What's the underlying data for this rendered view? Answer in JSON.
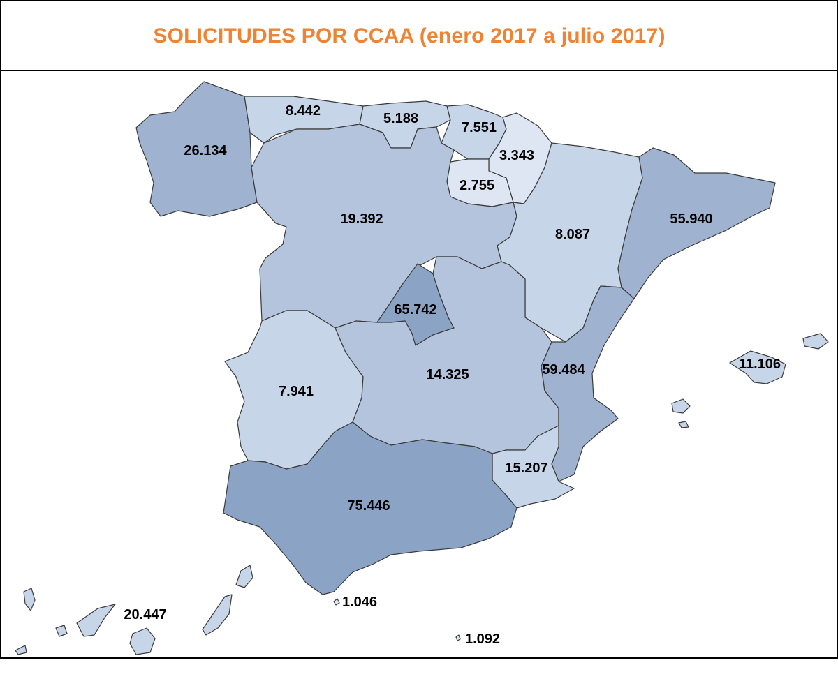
{
  "title": "SOLICITUDES POR CCAA (enero 2017 a julio 2017)",
  "colors": {
    "title": "#ee8433",
    "shade_darkest": "#8ba3c5",
    "shade_dark": "#9fb3d0",
    "shade_mid": "#b4c4dc",
    "shade_light": "#c7d5e8",
    "shade_lightest": "#dde6f2"
  },
  "regions": [
    {
      "key": "galicia",
      "value": "26.134"
    },
    {
      "key": "asturias",
      "value": "8.442"
    },
    {
      "key": "cantabria",
      "value": "5.188"
    },
    {
      "key": "pais_vasco",
      "value": "7.551"
    },
    {
      "key": "navarra",
      "value": "3.343"
    },
    {
      "key": "la_rioja",
      "value": "2.755"
    },
    {
      "key": "castilla_leon",
      "value": "19.392"
    },
    {
      "key": "aragon",
      "value": "8.087"
    },
    {
      "key": "cataluna",
      "value": "55.940"
    },
    {
      "key": "madrid",
      "value": "65.742"
    },
    {
      "key": "extremadura",
      "value": "7.941"
    },
    {
      "key": "castilla_la_mancha",
      "value": "14.325"
    },
    {
      "key": "valencia",
      "value": "59.484"
    },
    {
      "key": "baleares",
      "value": "11.106"
    },
    {
      "key": "murcia",
      "value": "15.207"
    },
    {
      "key": "andalucia",
      "value": "75.446"
    },
    {
      "key": "canarias",
      "value": "20.447"
    },
    {
      "key": "ceuta",
      "value": "1.046"
    },
    {
      "key": "melilla",
      "value": "1.092"
    }
  ]
}
